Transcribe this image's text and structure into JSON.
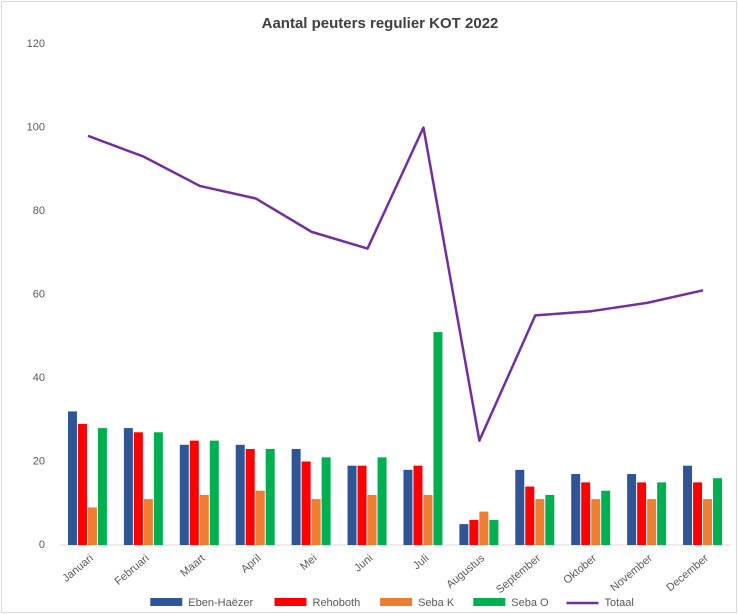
{
  "chart_data": {
    "type": "bar_line",
    "title": "Aantal peuters regulier KOT 2022",
    "categories": [
      "Januari",
      "Februari",
      "Maart",
      "April",
      "Mei",
      "Juni",
      "Juli",
      "Augustus",
      "September",
      "Oktober",
      "November",
      "December"
    ],
    "series": [
      {
        "name": "Eben-Haëzer",
        "color": "#2f5597",
        "type": "bar",
        "values": [
          32,
          28,
          24,
          24,
          23,
          19,
          18,
          5,
          18,
          17,
          17,
          19
        ]
      },
      {
        "name": "Rehoboth",
        "color": "#ff0000",
        "type": "bar",
        "values": [
          29,
          27,
          25,
          23,
          20,
          19,
          19,
          6,
          14,
          15,
          15,
          15
        ]
      },
      {
        "name": "Seba K",
        "color": "#ed7d31",
        "type": "bar",
        "values": [
          9,
          11,
          12,
          13,
          11,
          12,
          12,
          8,
          11,
          11,
          11,
          11
        ]
      },
      {
        "name": "Seba O",
        "color": "#00b050",
        "type": "bar",
        "values": [
          28,
          27,
          25,
          23,
          21,
          21,
          51,
          6,
          12,
          13,
          15,
          16
        ]
      },
      {
        "name": "Totaal",
        "color": "#7030a0",
        "type": "line",
        "values": [
          98,
          93,
          86,
          83,
          75,
          71,
          100,
          25,
          55,
          56,
          58,
          61
        ]
      }
    ],
    "ylim": [
      0,
      120
    ],
    "yticks": [
      0,
      20,
      40,
      60,
      80,
      100,
      120
    ],
    "grid": false,
    "legend": "bottom"
  }
}
